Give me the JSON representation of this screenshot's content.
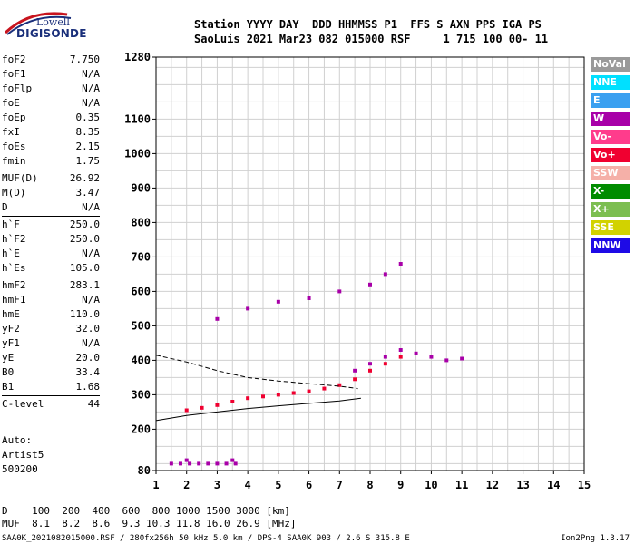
{
  "logo": {
    "line1": "Lowell",
    "line2": "DIGISONDE"
  },
  "header": {
    "row1": "Station YYYY DAY  DDD HHMMSS P1  FFS S AXN PPS IGA PS",
    "row2": "SaoLuis 2021 Mar23 082 015000 RSF     1 715 100 00- 11"
  },
  "params": [
    {
      "label": "foF2",
      "value": "7.750"
    },
    {
      "label": "foF1",
      "value": "N/A"
    },
    {
      "label": "foFlp",
      "value": "N/A"
    },
    {
      "label": "foE",
      "value": "N/A"
    },
    {
      "label": "foEp",
      "value": "0.35"
    },
    {
      "label": "fxI",
      "value": "8.35"
    },
    {
      "label": "foEs",
      "value": "2.15"
    },
    {
      "label": "fmin",
      "value": "1.75"
    },
    {
      "sep": true
    },
    {
      "label": "MUF(D)",
      "value": "26.92"
    },
    {
      "label": "M(D)",
      "value": "3.47"
    },
    {
      "label": "D",
      "value": "N/A"
    },
    {
      "sep": true
    },
    {
      "label": "h`F",
      "value": "250.0"
    },
    {
      "label": "h`F2",
      "value": "250.0"
    },
    {
      "label": "h`E",
      "value": "N/A"
    },
    {
      "label": "h`Es",
      "value": "105.0"
    },
    {
      "sep": true
    },
    {
      "label": "hmF2",
      "value": "283.1"
    },
    {
      "label": "hmF1",
      "value": "N/A"
    },
    {
      "label": "hmE",
      "value": "110.0"
    },
    {
      "label": "yF2",
      "value": "32.0"
    },
    {
      "label": "yF1",
      "value": "N/A"
    },
    {
      "label": "yE",
      "value": "20.0"
    },
    {
      "label": "B0",
      "value": "33.4"
    },
    {
      "label": "B1",
      "value": "1.68"
    },
    {
      "sep": true
    },
    {
      "label": "C-level",
      "value": "44"
    },
    {
      "sep": true
    }
  ],
  "auto": {
    "line1": "Auto:",
    "line2": "Artist5",
    "line3": "500200"
  },
  "legend": [
    {
      "label": "NoVal",
      "bg": "#9a9a9a",
      "fg": "#ffffff"
    },
    {
      "label": "NNE",
      "bg": "#00e0ff",
      "fg": "#ffffff"
    },
    {
      "label": "E",
      "bg": "#3aa0f0",
      "fg": "#ffffff"
    },
    {
      "label": "W",
      "bg": "#a800a8",
      "fg": "#ffffff"
    },
    {
      "label": "Vo-",
      "bg": "#ff3c8c",
      "fg": "#ffffff"
    },
    {
      "label": "Vo+",
      "bg": "#f00030",
      "fg": "#ffffff"
    },
    {
      "label": "SSW",
      "bg": "#f5b0a8",
      "fg": "#ffffff"
    },
    {
      "label": "X-",
      "bg": "#008c00",
      "fg": "#ffffff"
    },
    {
      "label": "X+",
      "bg": "#7cbe50",
      "fg": "#ffffff"
    },
    {
      "label": "SSE",
      "bg": "#d2d200",
      "fg": "#ffffff"
    },
    {
      "label": "NNW",
      "bg": "#1e0ae6",
      "fg": "#ffffff"
    }
  ],
  "chart_data": {
    "type": "scatter",
    "xlim": [
      1,
      15
    ],
    "ylim": [
      80,
      1280
    ],
    "x_ticks": [
      1,
      2,
      3,
      4,
      5,
      6,
      7,
      8,
      9,
      10,
      11,
      12,
      13,
      14,
      15
    ],
    "y_ticks": [
      80,
      200,
      300,
      400,
      500,
      600,
      700,
      800,
      900,
      1000,
      1100,
      1280
    ],
    "grid": true,
    "clusters": [
      {
        "name": "Es",
        "color_key": "W",
        "points": [
          [
            1.5,
            100
          ],
          [
            1.8,
            100
          ],
          [
            2.1,
            100
          ],
          [
            2.4,
            100
          ],
          [
            2.7,
            100
          ],
          [
            3.0,
            100
          ],
          [
            3.3,
            100
          ],
          [
            3.6,
            100
          ],
          [
            2.0,
            110
          ],
          [
            3.5,
            110
          ]
        ]
      },
      {
        "name": "F-trace",
        "color_key": "Vo+",
        "points": [
          [
            2.0,
            255
          ],
          [
            2.5,
            262
          ],
          [
            3.0,
            270
          ],
          [
            3.5,
            280
          ],
          [
            4.0,
            290
          ],
          [
            4.5,
            295
          ],
          [
            5.0,
            300
          ],
          [
            5.5,
            305
          ],
          [
            6.0,
            310
          ],
          [
            6.5,
            318
          ],
          [
            7.0,
            328
          ],
          [
            7.5,
            345
          ],
          [
            8.0,
            370
          ],
          [
            8.5,
            390
          ],
          [
            9.0,
            410
          ]
        ]
      },
      {
        "name": "F-echo",
        "color_key": "W",
        "points": [
          [
            7.5,
            370
          ],
          [
            8.0,
            390
          ],
          [
            8.5,
            410
          ],
          [
            9.0,
            430
          ],
          [
            9.5,
            420
          ],
          [
            10.0,
            410
          ],
          [
            10.5,
            400
          ],
          [
            11.0,
            405
          ]
        ]
      },
      {
        "name": "2F",
        "color_key": "W",
        "points": [
          [
            3.0,
            520
          ],
          [
            4.0,
            550
          ],
          [
            5.0,
            570
          ],
          [
            6.0,
            580
          ],
          [
            7.0,
            600
          ],
          [
            8.0,
            620
          ],
          [
            8.5,
            650
          ],
          [
            9.0,
            680
          ]
        ]
      }
    ],
    "profile_line": [
      [
        1.0,
        225
      ],
      [
        2.0,
        240
      ],
      [
        3.0,
        250
      ],
      [
        4.0,
        260
      ],
      [
        5.0,
        268
      ],
      [
        6.0,
        275
      ],
      [
        7.0,
        282
      ],
      [
        7.7,
        290
      ]
    ],
    "dashed_line": [
      [
        1.0,
        415
      ],
      [
        2.0,
        395
      ],
      [
        3.0,
        370
      ],
      [
        4.0,
        350
      ],
      [
        5.0,
        340
      ],
      [
        6.0,
        332
      ],
      [
        7.0,
        325
      ],
      [
        7.6,
        318
      ]
    ]
  },
  "footer": {
    "line1": "D    100  200  400  600  800 1000 1500 3000 [km]",
    "line2": "MUF  8.1  8.2  8.6  9.3 10.3 11.8 16.0 26.9 [MHz]",
    "line3": "SAA0K_2021082015000.RSF / 280fx256h 50 kHz 5.0 km / DPS-4 SAA0K 903 / 2.6 S 315.8 E",
    "version": "Ion2Png 1.3.17"
  }
}
